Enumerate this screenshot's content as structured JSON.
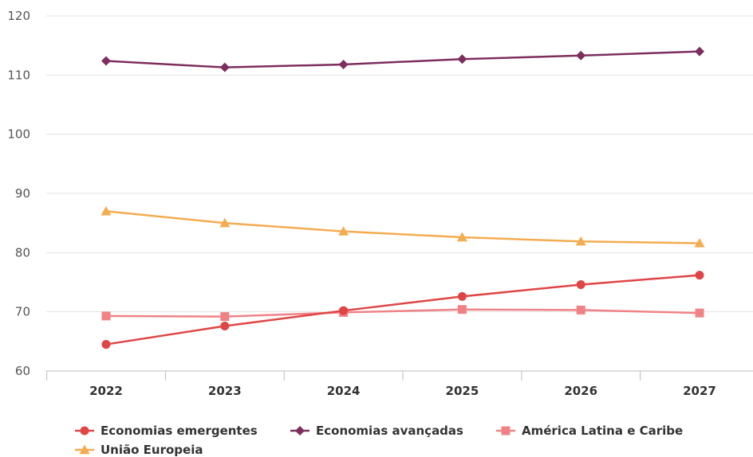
{
  "chart_data": {
    "type": "line",
    "title": "",
    "xlabel": "",
    "ylabel": "",
    "categories": [
      "2022",
      "2023",
      "2024",
      "2025",
      "2026",
      "2027"
    ],
    "ylim": [
      60,
      120
    ],
    "yticks": [
      60,
      70,
      80,
      90,
      100,
      110,
      120
    ],
    "grid": "horizontal",
    "legend_position": "bottom-left",
    "series": [
      {
        "name": "Economias emergentes",
        "color": "#e04545",
        "marker": "circle",
        "values": [
          64.5,
          67.6,
          70.2,
          72.6,
          74.6,
          76.2
        ]
      },
      {
        "name": "Economias avançadas",
        "color": "#7d2e5d",
        "marker": "diamond",
        "values": [
          112.4,
          111.3,
          111.8,
          112.7,
          113.3,
          114.0
        ]
      },
      {
        "name": "América Latina e Caribe",
        "color": "#f08286",
        "marker": "square",
        "values": [
          69.3,
          69.2,
          69.9,
          70.4,
          70.3,
          69.8
        ]
      },
      {
        "name": "União Europeia",
        "color": "#f4ac50",
        "marker": "triangle",
        "values": [
          87.0,
          85.0,
          83.6,
          82.6,
          81.9,
          81.6
        ]
      }
    ]
  }
}
